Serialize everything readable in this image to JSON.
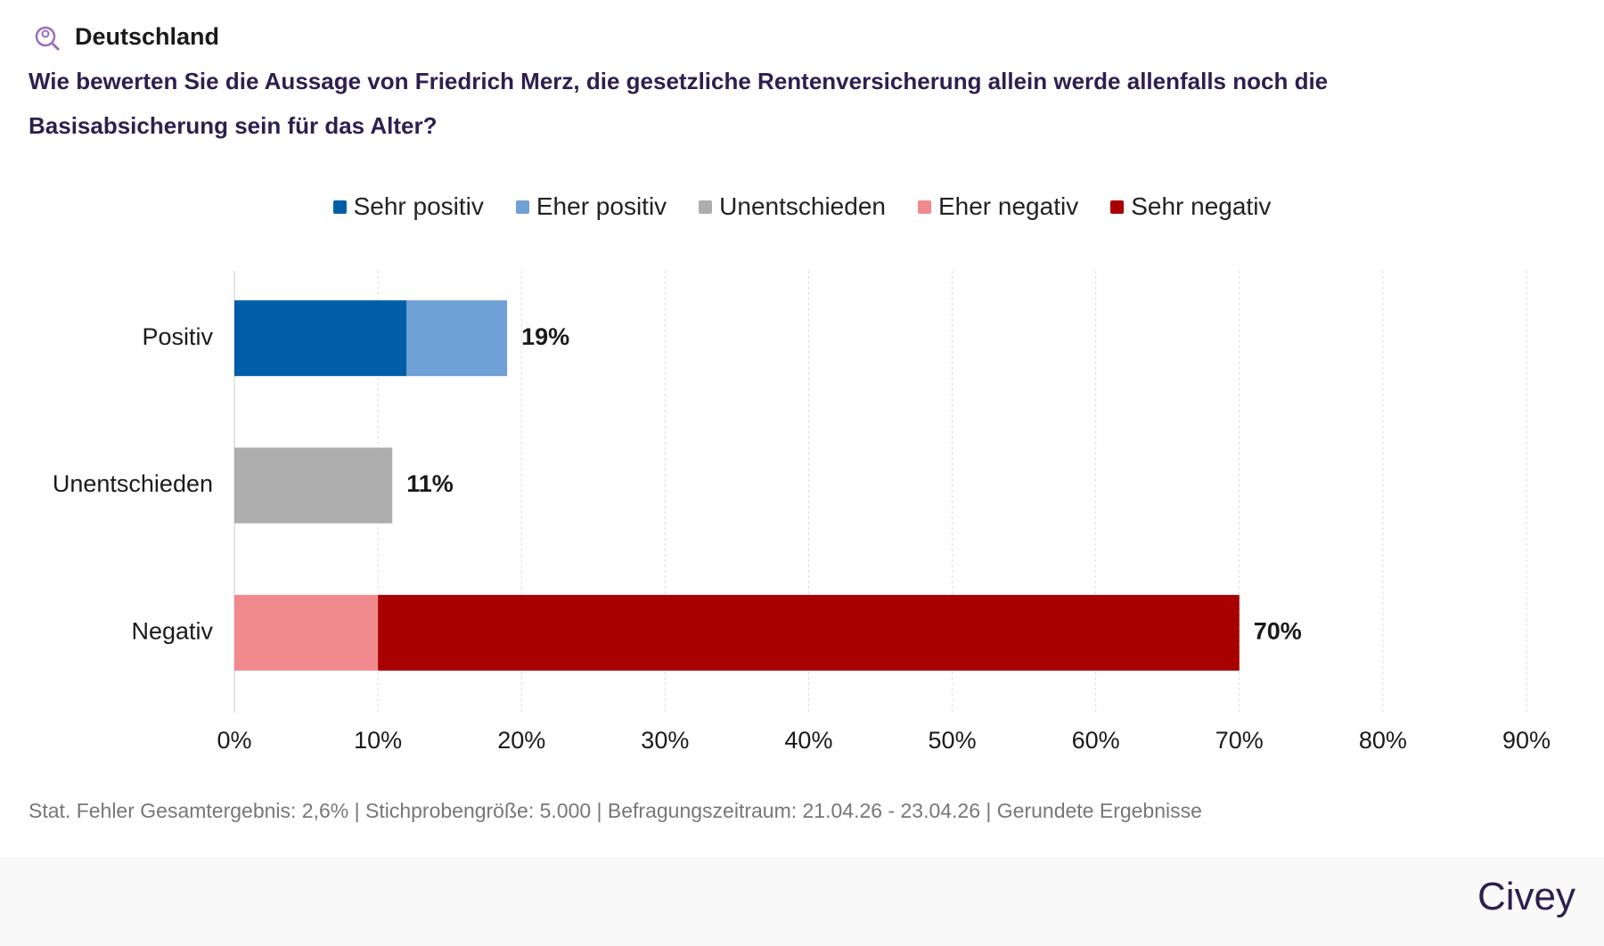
{
  "header": {
    "region": "Deutschland",
    "brand": "Civey"
  },
  "chart_data": {
    "type": "stacked-bar-horizontal",
    "title": "Wie bewerten Sie die Aussage von Friedrich Merz, die gesetzliche Rentenversicherung allein werde allenfalls noch die Basisabsicherung sein für das Alter?",
    "categories": [
      "Positiv",
      "Unentschieden",
      "Negativ"
    ],
    "series": [
      {
        "name": "Sehr positiv",
        "color": "#005ea8",
        "values": [
          12,
          null,
          null
        ]
      },
      {
        "name": "Eher positiv",
        "color": "#6fa0d6",
        "values": [
          7,
          null,
          null
        ]
      },
      {
        "name": "Unentschieden",
        "color": "#adadad",
        "values": [
          null,
          11,
          null
        ]
      },
      {
        "name": "Eher negativ",
        "color": "#f08a8f",
        "values": [
          null,
          null,
          10
        ]
      },
      {
        "name": "Sehr negativ",
        "color": "#a80000",
        "values": [
          null,
          null,
          60
        ]
      }
    ],
    "totals": {
      "values": [
        19,
        11,
        70
      ],
      "value_labels": [
        "19%",
        "11%",
        "70%"
      ]
    },
    "xlim": [
      0,
      90
    ],
    "xticks": [
      {
        "value": 0,
        "label": "0%"
      },
      {
        "value": 10,
        "label": "10%"
      },
      {
        "value": 20,
        "label": "20%"
      },
      {
        "value": 30,
        "label": "30%"
      },
      {
        "value": 40,
        "label": "40%"
      },
      {
        "value": 50,
        "label": "50%"
      },
      {
        "value": 60,
        "label": "60%"
      },
      {
        "value": 70,
        "label": "70%"
      },
      {
        "value": 80,
        "label": "80%"
      },
      {
        "value": 90,
        "label": "90%"
      }
    ],
    "grid": true,
    "note": "Stat. Fehler Gesamtergebnis: 2,6% | Stichprobengröße: 5.000 | Befragungszeitraum: 21.04.26 - 23.04.26 | Gerundete Ergebnisse"
  }
}
